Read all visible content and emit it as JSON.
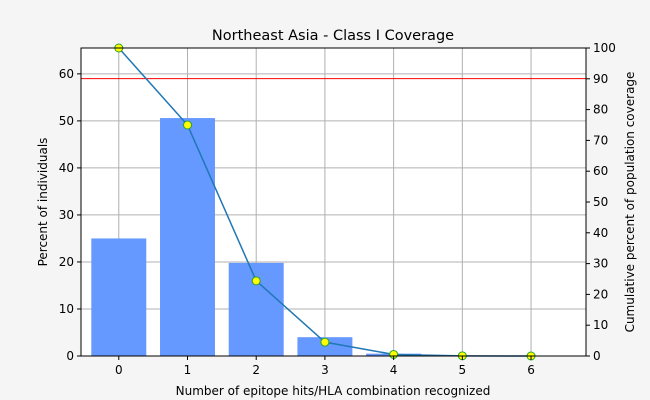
{
  "chart_data": {
    "type": "bar",
    "title": "Northeast Asia - Class I Coverage",
    "xlabel": "Number of epitope hits/HLA combination recognized",
    "ylabel": "Percent of individuals",
    "y2label": "Cumulative percent of population coverage",
    "categories": [
      "0",
      "1",
      "2",
      "3",
      "4",
      "5",
      "6"
    ],
    "x": [
      0,
      1,
      2,
      3,
      4,
      5,
      6
    ],
    "xlim": [
      -0.55,
      6.8
    ],
    "ylim": [
      0,
      65.5
    ],
    "y2lim": [
      0,
      100
    ],
    "yticks": [
      0,
      10,
      20,
      30,
      40,
      50,
      60
    ],
    "y2ticks": [
      0,
      10,
      20,
      30,
      40,
      50,
      60,
      70,
      80,
      90,
      100
    ],
    "grid": true,
    "series": [
      {
        "type": "bar",
        "axis": "left",
        "color": "#6699ff",
        "values": [
          25.0,
          50.6,
          19.8,
          4.0,
          0.5,
          0.05,
          0.0
        ]
      },
      {
        "type": "line",
        "axis": "right",
        "color": "#1f77b4",
        "marker_color": "#ffff00",
        "values": [
          100,
          75.0,
          24.4,
          4.5,
          0.5,
          0.05,
          0.0
        ]
      }
    ],
    "reference_line": {
      "axis": "left",
      "value": 59.0,
      "color": "#ff0000"
    }
  }
}
